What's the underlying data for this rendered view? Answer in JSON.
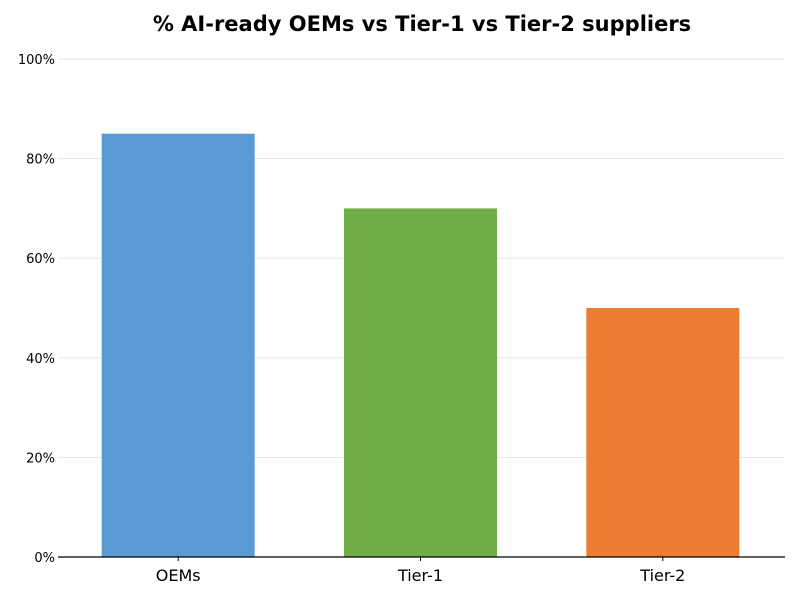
{
  "chart_data": {
    "type": "bar",
    "title": "% AI-ready OEMs vs Tier-1 vs Tier-2 suppliers",
    "xlabel": "",
    "ylabel": "",
    "categories": [
      "OEMs",
      "Tier-1",
      "Tier-2"
    ],
    "values": [
      85,
      70,
      50
    ],
    "colors": [
      "#5b9bd5",
      "#70ad47",
      "#ed7d31"
    ],
    "ylim": [
      0,
      100
    ],
    "yticks": [
      0,
      20,
      40,
      60,
      80,
      100
    ],
    "ytick_labels": [
      "0%",
      "20%",
      "40%",
      "60%",
      "80%",
      "100%"
    ],
    "grid": true,
    "legend": "none"
  }
}
